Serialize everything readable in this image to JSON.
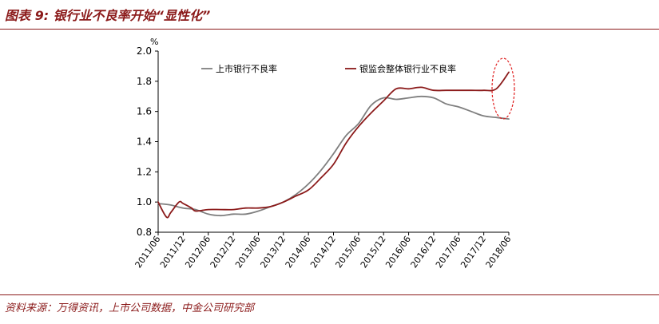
{
  "figure": {
    "title": "图表 9: 银行业不良率开始“显性化”",
    "source": "资料来源：万得资讯，上市公司数据，中金公司研究部"
  },
  "colors": {
    "title": "#8b1a1a",
    "series_listed": "#7f7f7f",
    "series_cbrc": "#8b1a1a",
    "highlight_ellipse": "#e02020"
  },
  "chart_data": {
    "type": "line",
    "ylabel": "%",
    "ylim": [
      0.8,
      2.0
    ],
    "yticks": [
      "2.0",
      "1.8",
      "1.6",
      "1.4",
      "1.2",
      "1.0",
      "0.8"
    ],
    "xticks": [
      "2011/06",
      "2011/12",
      "2012/06",
      "2012/12",
      "2013/06",
      "2013/12",
      "2014/06",
      "2014/12",
      "2015/06",
      "2015/12",
      "2016/06",
      "2016/12",
      "2017/06",
      "2017/12",
      "2018/06"
    ],
    "grid": false,
    "legend_position": "top",
    "series": [
      {
        "name": "上市银行不良率",
        "x": [
          "2011/06",
          "2011/09",
          "2011/12",
          "2012/03",
          "2012/06",
          "2012/09",
          "2012/12",
          "2013/03",
          "2013/06",
          "2013/09",
          "2013/12",
          "2014/03",
          "2014/06",
          "2014/09",
          "2014/12",
          "2015/03",
          "2015/06",
          "2015/09",
          "2015/12",
          "2016/03",
          "2016/06",
          "2016/09",
          "2016/12",
          "2017/03",
          "2017/06",
          "2017/09",
          "2017/12",
          "2018/03",
          "2018/06"
        ],
        "values": [
          0.99,
          0.98,
          0.96,
          0.95,
          0.92,
          0.91,
          0.92,
          0.92,
          0.94,
          0.97,
          1.0,
          1.05,
          1.12,
          1.21,
          1.32,
          1.44,
          1.52,
          1.64,
          1.69,
          1.68,
          1.69,
          1.7,
          1.69,
          1.65,
          1.63,
          1.6,
          1.57,
          1.56,
          1.55
        ]
      },
      {
        "name": "银监会整体银行业不良率",
        "x": [
          "2011/06",
          "2011/08",
          "2011/09",
          "2011/11",
          "2011/12",
          "2012/02",
          "2012/03",
          "2012/06",
          "2012/09",
          "2012/12",
          "2013/03",
          "2013/06",
          "2013/09",
          "2013/12",
          "2014/03",
          "2014/06",
          "2014/09",
          "2014/12",
          "2015/03",
          "2015/06",
          "2015/09",
          "2015/12",
          "2016/03",
          "2016/06",
          "2016/09",
          "2016/12",
          "2017/03",
          "2017/06",
          "2017/09",
          "2017/12",
          "2018/03",
          "2018/06"
        ],
        "values": [
          1.0,
          0.9,
          0.93,
          1.0,
          0.99,
          0.96,
          0.94,
          0.95,
          0.95,
          0.95,
          0.96,
          0.96,
          0.97,
          1.0,
          1.04,
          1.08,
          1.16,
          1.25,
          1.39,
          1.5,
          1.59,
          1.67,
          1.75,
          1.75,
          1.76,
          1.74,
          1.74,
          1.74,
          1.74,
          1.74,
          1.75,
          1.86
        ]
      }
    ]
  }
}
